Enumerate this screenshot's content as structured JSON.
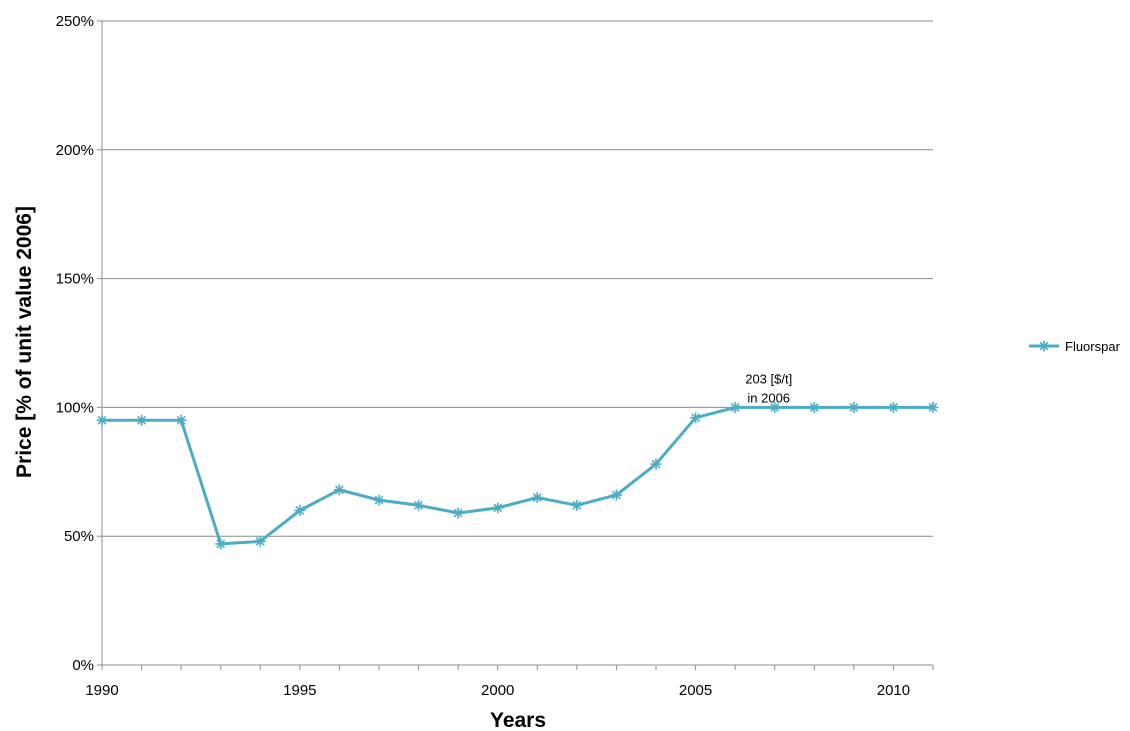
{
  "chart_data": {
    "type": "line",
    "xlabel": "Years",
    "ylabel": "Price [% of unit value 2006]",
    "xlim": [
      1990,
      2011
    ],
    "ylim": [
      0,
      250
    ],
    "x_ticks": [
      "1990",
      "1995",
      "2000",
      "2005",
      "2010"
    ],
    "y_ticks": [
      "0%",
      "50%",
      "100%",
      "150%",
      "200%",
      "250%"
    ],
    "grid": "horizontal",
    "legend": "right",
    "x": [
      1990,
      1991,
      1992,
      1993,
      1994,
      1995,
      1996,
      1997,
      1998,
      1999,
      2000,
      2001,
      2002,
      2003,
      2004,
      2005,
      2006,
      2007,
      2008,
      2009,
      2010,
      2011
    ],
    "series": [
      {
        "name": "Fluorspar",
        "color": "#4BACC6",
        "marker": "asterisk",
        "values": [
          95,
          95,
          95,
          47,
          48,
          60,
          68,
          64,
          62,
          59,
          61,
          65,
          62,
          66,
          78,
          96,
          100,
          100,
          100,
          100,
          100,
          100
        ]
      }
    ],
    "annotation": {
      "line1": "203 [$/t]",
      "line2": "in 2006",
      "x": 2007,
      "y": 100
    }
  }
}
